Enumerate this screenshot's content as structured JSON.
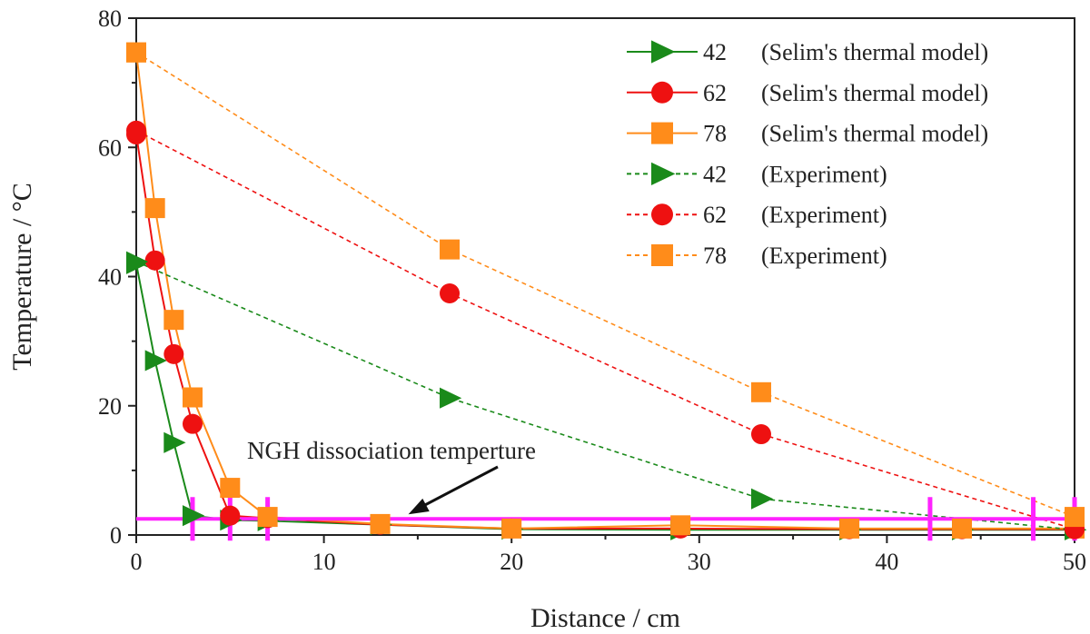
{
  "chart_data": {
    "type": "line",
    "xlabel": "Distance / cm",
    "ylabel": "Temperature / °C",
    "xlim": [
      0,
      50
    ],
    "ylim": [
      0,
      80
    ],
    "xticks": [
      0,
      10,
      20,
      30,
      40,
      50
    ],
    "yticks": [
      0,
      20,
      40,
      60,
      80
    ],
    "grid": false,
    "legend_position": "top-right",
    "series": [
      {
        "label": "42",
        "desc": "(Selim's thermal model)",
        "style": "solid",
        "marker": "triangle-right",
        "color": "#1a8a1a",
        "x": [
          0,
          1,
          2,
          3,
          5,
          7,
          13,
          20,
          29,
          38,
          44,
          50
        ],
        "y": [
          42,
          27,
          14.3,
          3,
          2.3,
          2.2,
          1.6,
          0.9,
          0.8,
          0.8,
          0.8,
          0.8
        ]
      },
      {
        "label": "62",
        "desc": "(Selim's thermal model)",
        "style": "solid",
        "marker": "circle",
        "color": "#ee1111",
        "x": [
          0,
          1,
          2,
          3,
          5,
          7,
          13,
          20,
          29,
          38,
          44,
          50
        ],
        "y": [
          62,
          42.5,
          28,
          17.2,
          3,
          2.6,
          1.6,
          1,
          1,
          0.9,
          0.9,
          0.9
        ]
      },
      {
        "label": "78",
        "desc": "(Selim's thermal model)",
        "style": "solid",
        "marker": "square",
        "color": "#ff8c1a",
        "x": [
          0,
          1,
          2,
          3,
          5,
          7,
          13,
          20,
          29,
          38,
          44,
          50
        ],
        "y": [
          74.7,
          50.6,
          33.3,
          21.3,
          7.3,
          2.8,
          1.7,
          1,
          1.5,
          1,
          1,
          1
        ]
      },
      {
        "label": "42",
        "desc": "(Experiment)",
        "style": "dashed",
        "marker": "triangle-right",
        "color": "#1a8a1a",
        "x": [
          0,
          16.7,
          33.3,
          50
        ],
        "y": [
          42.3,
          21.2,
          5.6,
          0.8
        ]
      },
      {
        "label": "62",
        "desc": "(Experiment)",
        "style": "dashed",
        "marker": "circle",
        "color": "#ee1111",
        "x": [
          0,
          16.7,
          33.3,
          50
        ],
        "y": [
          62.6,
          37.4,
          15.6,
          0.9
        ]
      },
      {
        "label": "78",
        "desc": "(Experiment)",
        "style": "dashed",
        "marker": "square",
        "color": "#ff8c1a",
        "x": [
          0,
          16.7,
          33.3,
          50
        ],
        "y": [
          74.7,
          44.2,
          22.1,
          2.8
        ]
      }
    ],
    "reference_line": {
      "y": 2.5,
      "color": "#ff22ff",
      "error_bar_x": [
        3,
        5,
        7,
        42.3,
        47.8,
        50
      ]
    },
    "annotation": {
      "text": "NGH dissociation temperture",
      "arrow_to": [
        14.5,
        3.2
      ]
    }
  }
}
